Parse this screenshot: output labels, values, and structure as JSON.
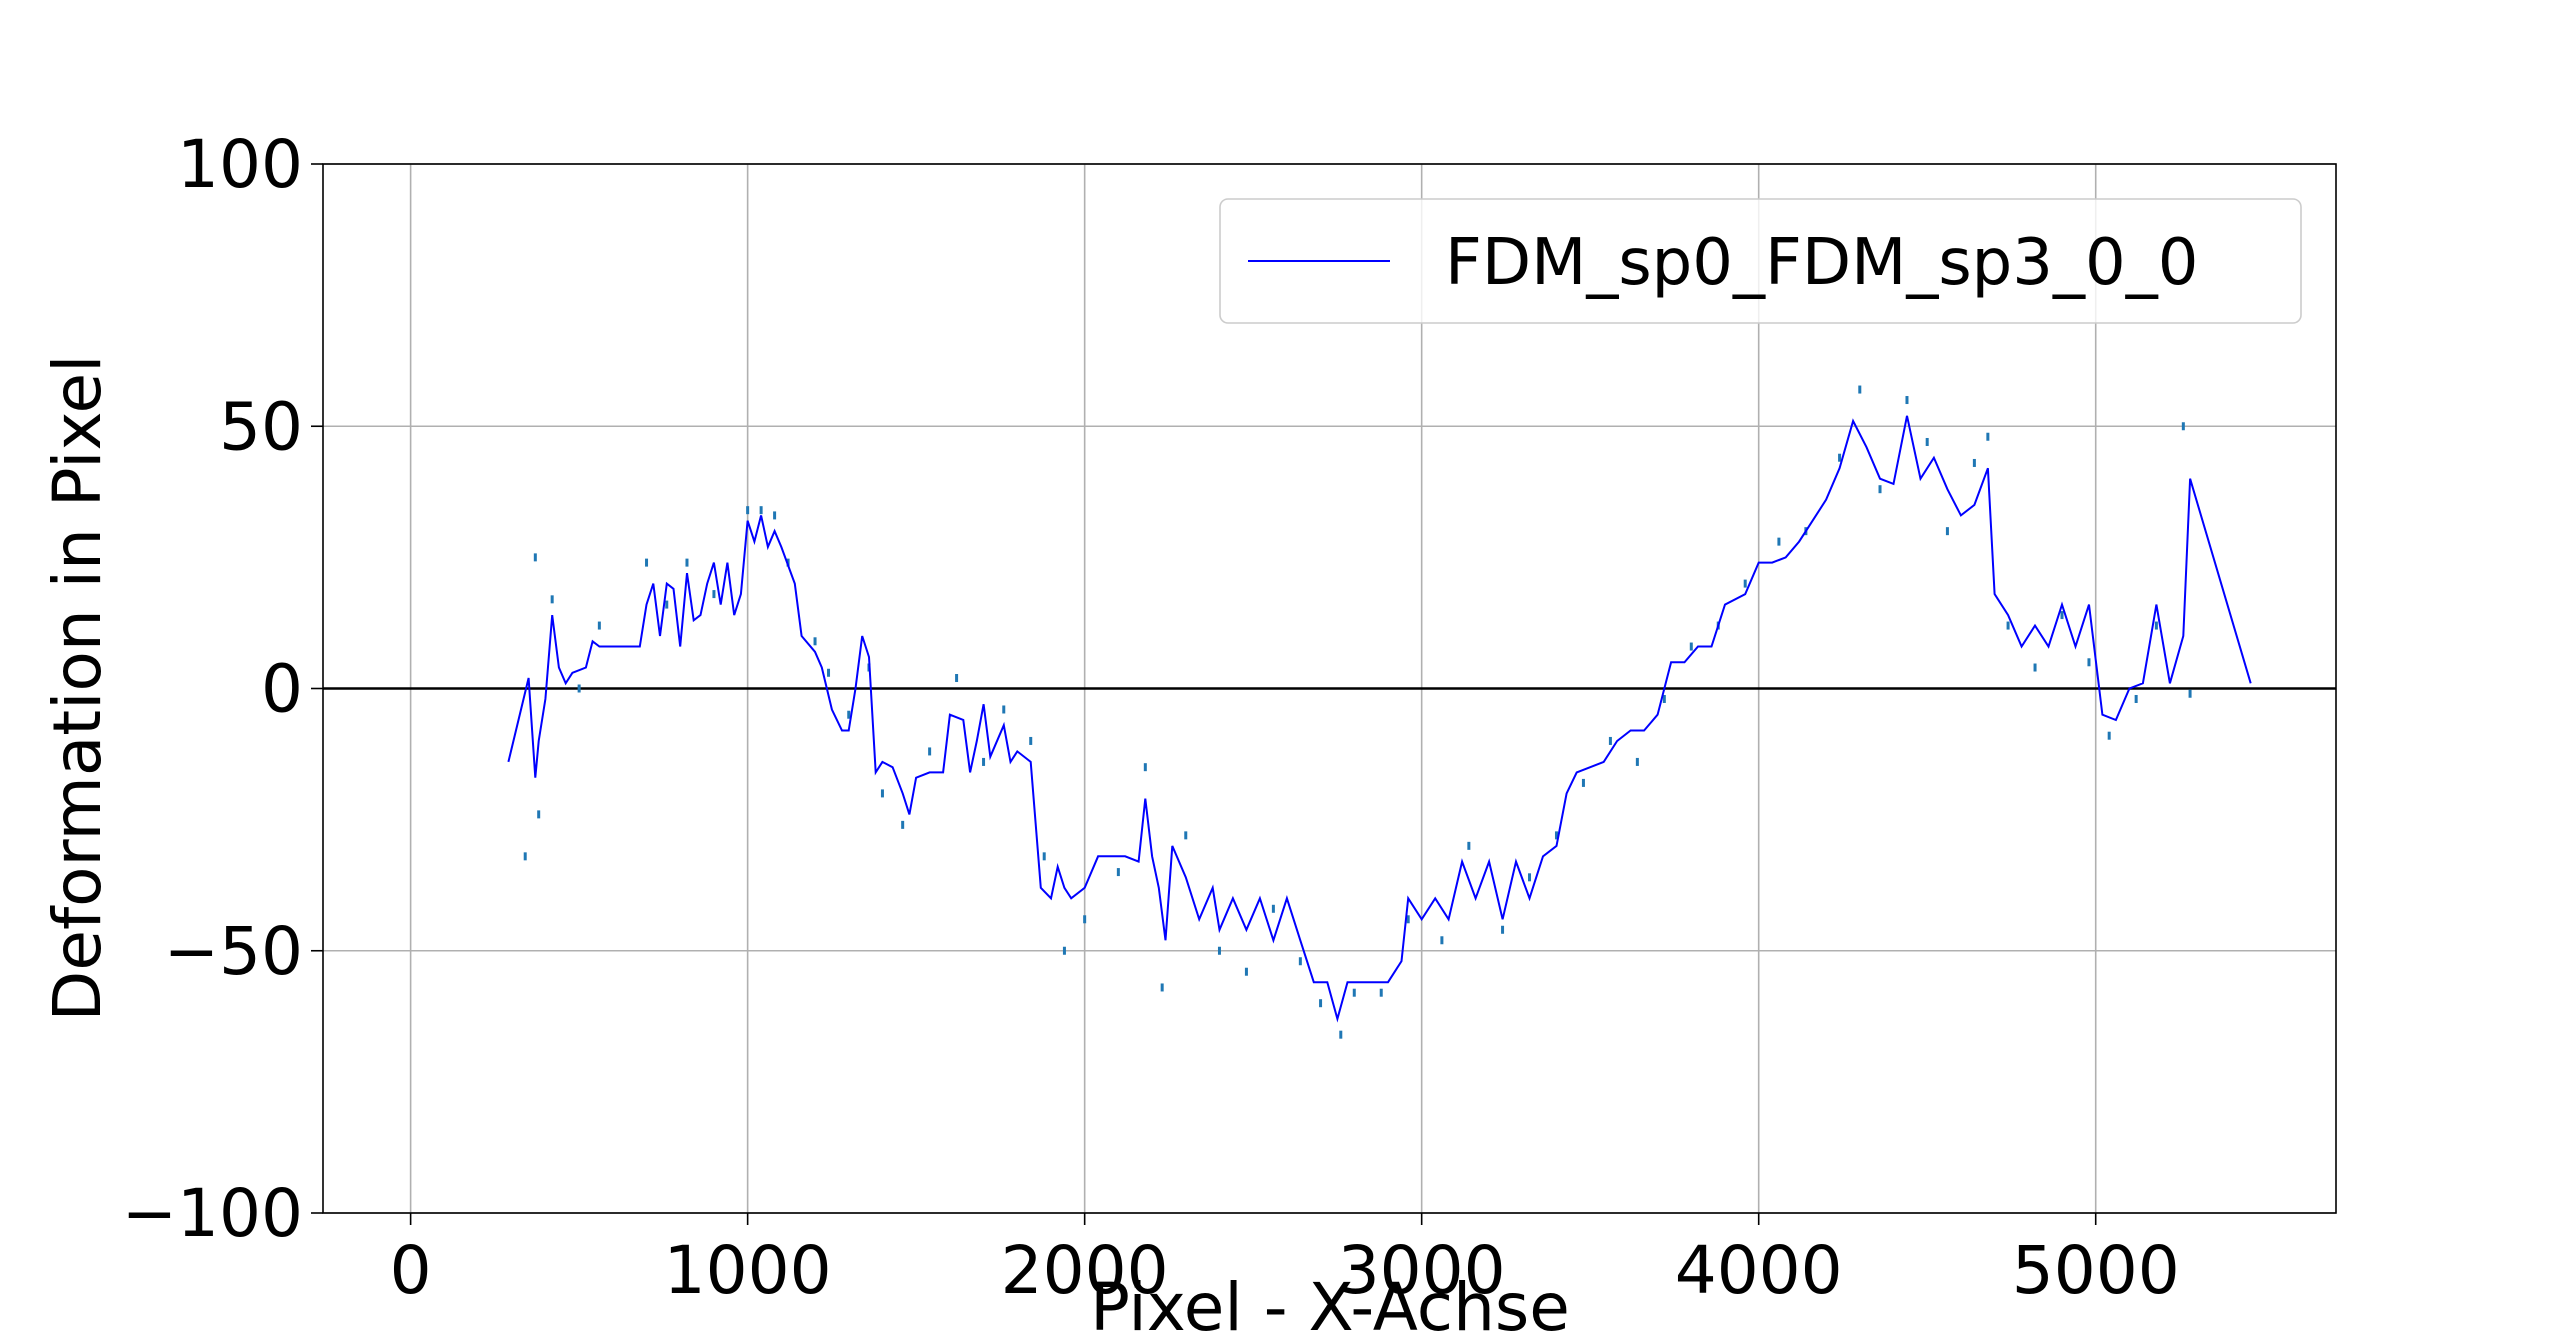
{
  "chart_data": {
    "type": "line",
    "xlabel": "Pixel - X-Achse",
    "ylabel": "Deformation in Pixel",
    "xlim": [
      -260,
      5713
    ],
    "ylim": [
      -100,
      100
    ],
    "xticks": [
      0,
      1000,
      2000,
      3000,
      4000,
      5000
    ],
    "yticks": [
      100,
      50,
      0,
      {
        "value": -50,
        "label": "−50"
      },
      {
        "value": -100,
        "label": "−100"
      }
    ],
    "grid": true,
    "hline": 0,
    "legend": "upper right",
    "series": [
      {
        "name": "FDM_sp0_FDM_sp3_0_0",
        "color": "#0000ff",
        "x": [
          290,
          350,
          370,
          380,
          400,
          420,
          440,
          460,
          480,
          520,
          540,
          560,
          600,
          640,
          680,
          700,
          720,
          740,
          760,
          780,
          800,
          820,
          840,
          860,
          880,
          900,
          920,
          940,
          960,
          980,
          1000,
          1020,
          1040,
          1060,
          1080,
          1100,
          1140,
          1160,
          1200,
          1220,
          1250,
          1280,
          1300,
          1320,
          1340,
          1360,
          1380,
          1400,
          1430,
          1460,
          1480,
          1500,
          1540,
          1580,
          1600,
          1640,
          1660,
          1680,
          1700,
          1720,
          1760,
          1780,
          1800,
          1840,
          1870,
          1900,
          1920,
          1940,
          1960,
          2000,
          2040,
          2080,
          2120,
          2160,
          2180,
          2200,
          2220,
          2240,
          2260,
          2300,
          2340,
          2380,
          2400,
          2440,
          2480,
          2520,
          2560,
          2600,
          2640,
          2680,
          2720,
          2750,
          2780,
          2820,
          2900,
          2940,
          2960,
          3000,
          3040,
          3080,
          3120,
          3160,
          3200,
          3240,
          3280,
          3320,
          3360,
          3400,
          3430,
          3460,
          3500,
          3540,
          3580,
          3620,
          3660,
          3700,
          3740,
          3780,
          3820,
          3860,
          3900,
          3960,
          4000,
          4040,
          4080,
          4120,
          4160,
          4200,
          4240,
          4280,
          4320,
          4360,
          4400,
          4440,
          4480,
          4520,
          4560,
          4600,
          4640,
          4680,
          4700,
          4740,
          4780,
          4820,
          4860,
          4900,
          4940,
          4980,
          5020,
          5060,
          5100,
          5140,
          5180,
          5220,
          5260,
          5280,
          5460
        ],
        "values": [
          -14,
          2,
          -17,
          -10,
          -2,
          14,
          4,
          1,
          3,
          4,
          9,
          8,
          8,
          8,
          8,
          16,
          20,
          10,
          20,
          19,
          8,
          22,
          13,
          14,
          20,
          24,
          16,
          24,
          14,
          18,
          32,
          28,
          33,
          27,
          30,
          27,
          20,
          10,
          7,
          4,
          -4,
          -8,
          -8,
          0,
          10,
          6,
          -16,
          -14,
          -15,
          -20,
          -24,
          -17,
          -16,
          -16,
          -5,
          -6,
          -16,
          -10,
          -3,
          -13,
          -7,
          -14,
          -12,
          -14,
          -38,
          -40,
          -34,
          -38,
          -40,
          -38,
          -32,
          -32,
          -32,
          -33,
          -21,
          -32,
          -38,
          -48,
          -30,
          -36,
          -44,
          -38,
          -46,
          -40,
          -46,
          -40,
          -48,
          -40,
          -48,
          -56,
          -56,
          -63,
          -56,
          -56,
          -56,
          -52,
          -40,
          -44,
          -40,
          -44,
          -33,
          -40,
          -33,
          -44,
          -33,
          -40,
          -32,
          -30,
          -20,
          -16,
          -15,
          -14,
          -10,
          -8,
          -8,
          -5,
          5,
          5,
          8,
          8,
          16,
          18,
          24,
          24,
          25,
          28,
          32,
          36,
          42,
          51,
          46,
          40,
          39,
          52,
          40,
          44,
          38,
          33,
          35,
          42,
          18,
          14,
          8,
          12,
          8,
          16,
          8,
          16,
          -5,
          -6,
          0,
          1,
          16,
          1,
          10,
          40,
          1
        ]
      }
    ],
    "scatter": {
      "color": "#1f77b4",
      "x": [
        340,
        370,
        380,
        420,
        500,
        560,
        700,
        760,
        820,
        900,
        1000,
        1040,
        1080,
        1120,
        1200,
        1240,
        1300,
        1360,
        1400,
        1460,
        1540,
        1620,
        1700,
        1760,
        1840,
        1880,
        1940,
        2000,
        2100,
        2180,
        2230,
        2300,
        2400,
        2480,
        2560,
        2640,
        2700,
        2760,
        2800,
        2880,
        2960,
        3060,
        3140,
        3240,
        3320,
        3400,
        3480,
        3560,
        3640,
        3720,
        3800,
        3880,
        3960,
        4060,
        4140,
        4240,
        4300,
        4360,
        4440,
        4500,
        4560,
        4640,
        4680,
        4740,
        4820,
        4900,
        4980,
        5040,
        5120,
        5180,
        5260,
        5280
      ],
      "values": [
        -32,
        25,
        -24,
        17,
        0,
        12,
        24,
        16,
        24,
        18,
        34,
        34,
        33,
        24,
        9,
        3,
        -5,
        4,
        -20,
        -26,
        -12,
        2,
        -14,
        -4,
        -10,
        -32,
        -50,
        -44,
        -35,
        -15,
        -57,
        -28,
        -50,
        -54,
        -42,
        -52,
        -60,
        -66,
        -58,
        -58,
        -44,
        -48,
        -30,
        -46,
        -36,
        -28,
        -18,
        -10,
        -14,
        -2,
        8,
        12,
        20,
        28,
        30,
        44,
        57,
        38,
        55,
        47,
        30,
        43,
        48,
        12,
        4,
        14,
        5,
        -9,
        -2,
        12,
        50,
        -1
      ]
    }
  }
}
